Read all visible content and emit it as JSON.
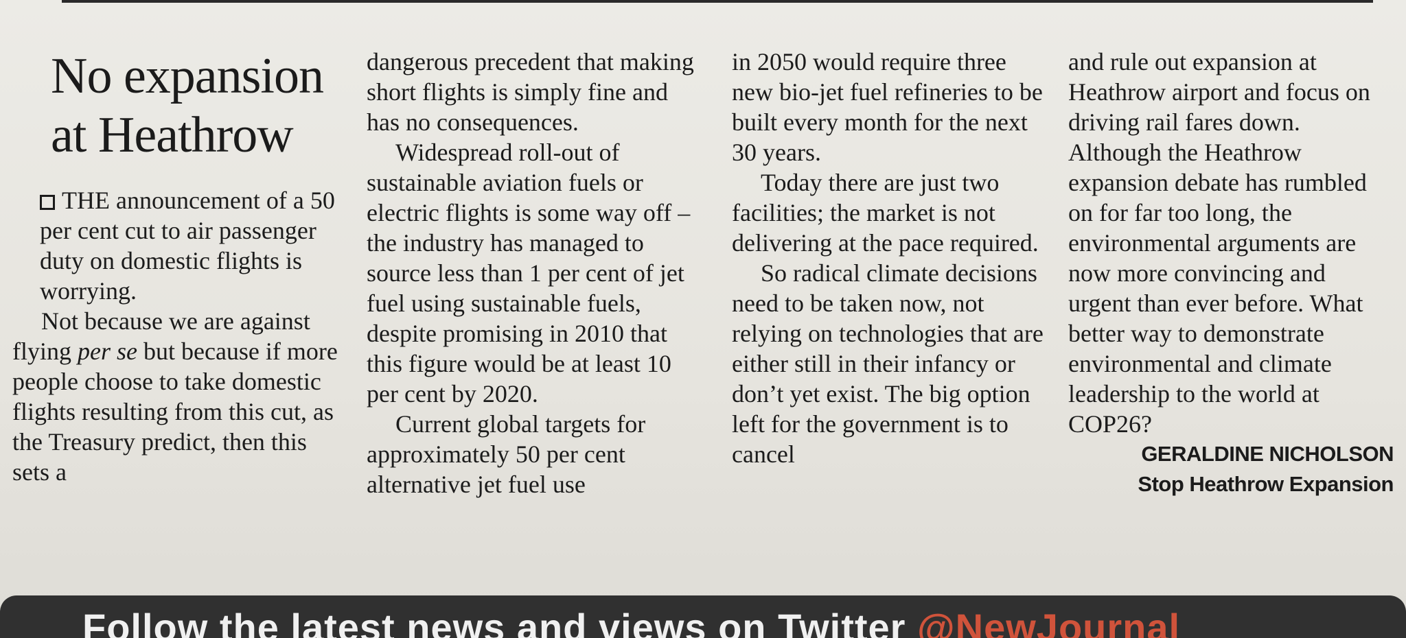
{
  "headline": "No expansion at Heathrow",
  "col1": {
    "p1": "THE announcement of a 50 per cent cut to air passenger duty on domestic flights is worrying.",
    "p2a": "Not because we are against flying ",
    "p2em": "per se",
    "p2b": " but because if more people choose to take domestic flights resulting from this cut, as the Treasury predict, then this sets a"
  },
  "col2": {
    "p1": "dangerous precedent that making short flights is simply fine and has no consequences.",
    "p2": "Widespread roll-out of sustainable aviation fuels or electric flights is some way off – the industry has managed to source less than 1 per cent of jet fuel using sustainable fuels, despite promising in 2010 that this figure would be at least 10 per cent by 2020.",
    "p3": "Current global targets for approximately 50 per cent alternative jet fuel use"
  },
  "col3": {
    "p1": "in 2050 would require three new bio-jet fuel refineries to be built every month for the next 30 years.",
    "p2": "Today there are just two facilities; the market is not delivering at the pace required.",
    "p3": "So radical climate decisions need to be taken now, not relying on technologies that are either still in their infancy or don’t yet exist. The big option left for the government is to cancel"
  },
  "col4": {
    "p1": "and rule out expansion at Heathrow airport and focus on driving rail fares down. Although the Heathrow expansion debate has rumbled on for far too long, the environmental arguments are now more convincing and urgent than ever before. What better way to demonstrate environmental and climate leadership to the world at COP26?",
    "sig_name": "GERALDINE NICHOLSON",
    "sig_org": "Stop Heathrow Expansion"
  },
  "footer": {
    "text": "Follow the latest news and views on Twitter ",
    "handle": "@NewJournal"
  }
}
